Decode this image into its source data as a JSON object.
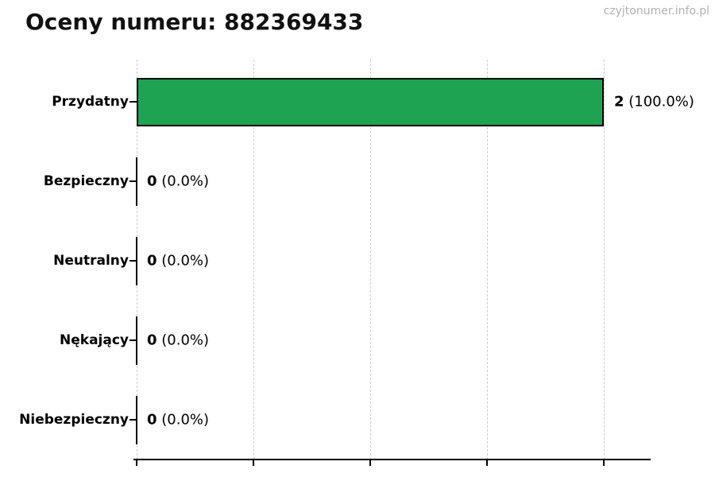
{
  "watermark": "czyjtonumer.info.pl",
  "chart_data": {
    "type": "bar",
    "orientation": "horizontal",
    "title": "Oceny numeru: 882369433",
    "categories": [
      "Przydatny",
      "Bezpieczny",
      "Neutralny",
      "Nękający",
      "Niebezpieczny"
    ],
    "values": [
      2,
      0,
      0,
      0,
      0
    ],
    "percent_labels": [
      "100.0%",
      "0.0%",
      "0.0%",
      "0.0%",
      "0.0%"
    ],
    "value_labels": [
      "2 (100.0%)",
      "0 (0.0%)",
      "0 (0.0%)",
      "0 (0.0%)",
      "0 (0.0%)"
    ],
    "xlabel": "",
    "ylabel": "",
    "xlim": [
      0,
      2.2
    ],
    "xticks": [
      0,
      0.5,
      1.0,
      1.5,
      2.0
    ],
    "xtick_labels_visible": false,
    "grid": "vertical-dashed",
    "legend": "none",
    "bar_color": "#1ea352",
    "bar_edge_color": "#000000",
    "gridline_color": "#cdcdcd",
    "axis_color": "#000000",
    "text_color": "#000000",
    "watermark_color": "#b2b2b2"
  }
}
